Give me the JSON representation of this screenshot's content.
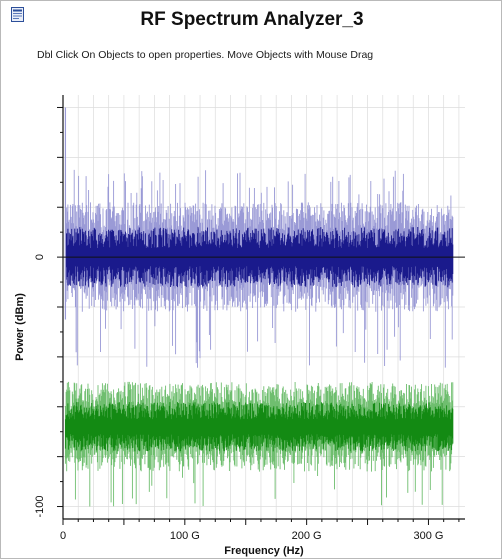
{
  "window": {
    "title": "RF Spectrum Analyzer_3",
    "hint": "Dbl Click On Objects to open properties.  Move Objects with Mouse Drag"
  },
  "icons": {
    "app": "document-icon"
  },
  "colors": {
    "background": "#ffffff",
    "grid": "#dcdcdc",
    "axis": "#111111",
    "series_blue": "#1a1a8c",
    "series_blue_peaks": "#9a9ad6",
    "series_green": "#138a13",
    "series_green_peaks": "#6fbe6f"
  },
  "chart_data": {
    "type": "line",
    "xlabel": "Frequency (Hz)",
    "ylabel": "Power (dBm)",
    "x_ticks": [
      "0",
      "100 G",
      "200 G",
      "300 G"
    ],
    "y_ticks": [
      "0",
      "-100"
    ],
    "xlim": [
      0,
      330
    ],
    "ylim": [
      -105,
      65
    ],
    "grid": true,
    "series": [
      {
        "color": "#1a1a8c",
        "x_range": [
          2,
          320
        ],
        "mean": 0,
        "spread": 22,
        "peak_max": 35,
        "dip_min": -45
      },
      {
        "color": "#138a13",
        "x_range": [
          2,
          320
        ],
        "mean": -68,
        "spread": 18,
        "peak_max": -57,
        "dip_min": -100
      }
    ]
  }
}
